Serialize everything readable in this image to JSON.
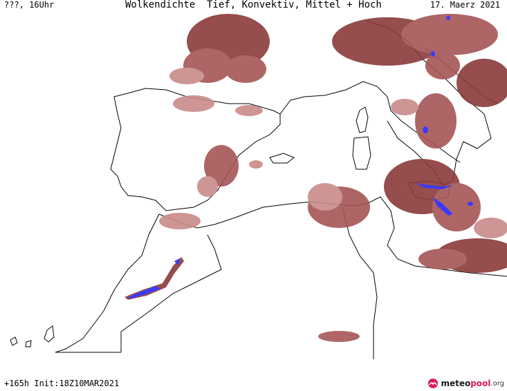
{
  "header": {
    "run_label": "???, 16Uhr",
    "title": "Wolkendichte  Tief, Konvektiv, Mittel + Hoch",
    "date": "17. Maerz 2021"
  },
  "footer": {
    "forecast": "+165h Init:18Z10MAR2021"
  },
  "logo": {
    "part1": "meteo",
    "part2": "pool",
    "part3": ".org",
    "icon": "meteopool-logo-icon"
  },
  "colors": {
    "cloud_dark": "#8a3a3a",
    "cloud_mid": "#a65555",
    "cloud_light": "#c98a8a",
    "convective": "#3a3aff",
    "coast": "#000000"
  }
}
